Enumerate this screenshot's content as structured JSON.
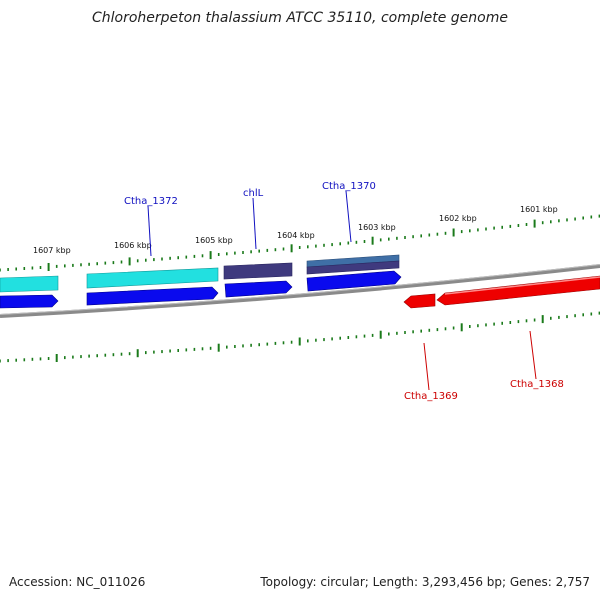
{
  "title": "Chloroherpeton thalassium ATCC 35110, complete genome",
  "footer": {
    "accession": "Accession: NC_011026",
    "stats": "Topology: circular; Length: 3,293,456 bp; Genes: 2,757"
  },
  "colors": {
    "cyan_gene": "#22e0e0",
    "blue_gene": "#0a0aee",
    "dark_gene": "#3f3a7e",
    "steel_gene": "#3f6fa6",
    "red_gene": "#ee0000",
    "tick": "#1a7a1a",
    "backbone": "#808080"
  },
  "scale_labels": [
    "1607 kbp",
    "1606 kbp",
    "1605 kbp",
    "1604 kbp",
    "1603 kbp",
    "1602 kbp",
    "1601 kbp"
  ],
  "genes": [
    {
      "label": "Ctha_1372",
      "strand": "plus"
    },
    {
      "label": "chlL",
      "strand": "plus"
    },
    {
      "label": "Ctha_1370",
      "strand": "plus"
    },
    {
      "label": "Ctha_1369",
      "strand": "minus"
    },
    {
      "label": "Ctha_1368",
      "strand": "minus"
    }
  ]
}
